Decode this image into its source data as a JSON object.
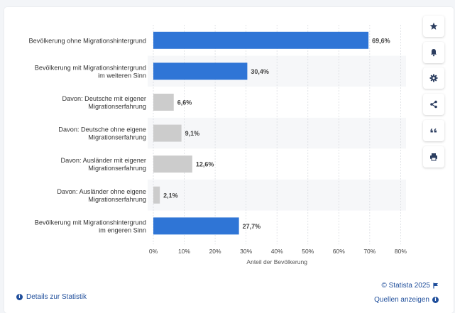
{
  "chart_data": {
    "type": "bar",
    "orientation": "horizontal",
    "categories": [
      [
        "Bevölkerung ohne Migrationshintergrund"
      ],
      [
        "Bevölkerung mit Migrationshintergrund",
        "im weiteren Sinn"
      ],
      [
        "Davon: Deutsche mit eigener",
        "Migrationserfahrung"
      ],
      [
        "Davon: Deutsche ohne eigene",
        "Migrationserfahrung"
      ],
      [
        "Davon: Ausländer mit eigener",
        "Migrationserfahrung"
      ],
      [
        "Davon: Ausländer ohne eigene",
        "Migrationserfahrung"
      ],
      [
        "Bevölkerung mit Migrationshintergrund",
        "im engeren Sinn"
      ]
    ],
    "values": [
      69.6,
      30.4,
      6.6,
      9.1,
      12.6,
      2.1,
      27.7
    ],
    "value_labels": [
      "69,6%",
      "30,4%",
      "6,6%",
      "9,1%",
      "12,6%",
      "2,1%",
      "27,7%"
    ],
    "bar_colors": [
      "#2f75d6",
      "#2f75d6",
      "#cccccc",
      "#cccccc",
      "#cccccc",
      "#cccccc",
      "#2f75d6"
    ],
    "xlabel": "Anteil der Bevölkerung",
    "xlim": [
      0,
      80
    ],
    "xticks": [
      "0%",
      "10%",
      "20%",
      "30%",
      "40%",
      "50%",
      "60%",
      "70%",
      "80%"
    ],
    "grid": true
  },
  "sidebar": {
    "buttons": [
      {
        "name": "star-icon"
      },
      {
        "name": "bell-icon"
      },
      {
        "name": "gear-icon"
      },
      {
        "name": "share-icon"
      },
      {
        "name": "quote-icon"
      },
      {
        "name": "print-icon"
      }
    ]
  },
  "footer": {
    "details_label": "Details zur Statistik",
    "copyright": "© Statista 2025",
    "sources_label": "Quellen anzeigen"
  },
  "colors": {
    "accent": "#2f75d6",
    "link": "#1f4e9b",
    "muted_bar": "#cccccc"
  }
}
